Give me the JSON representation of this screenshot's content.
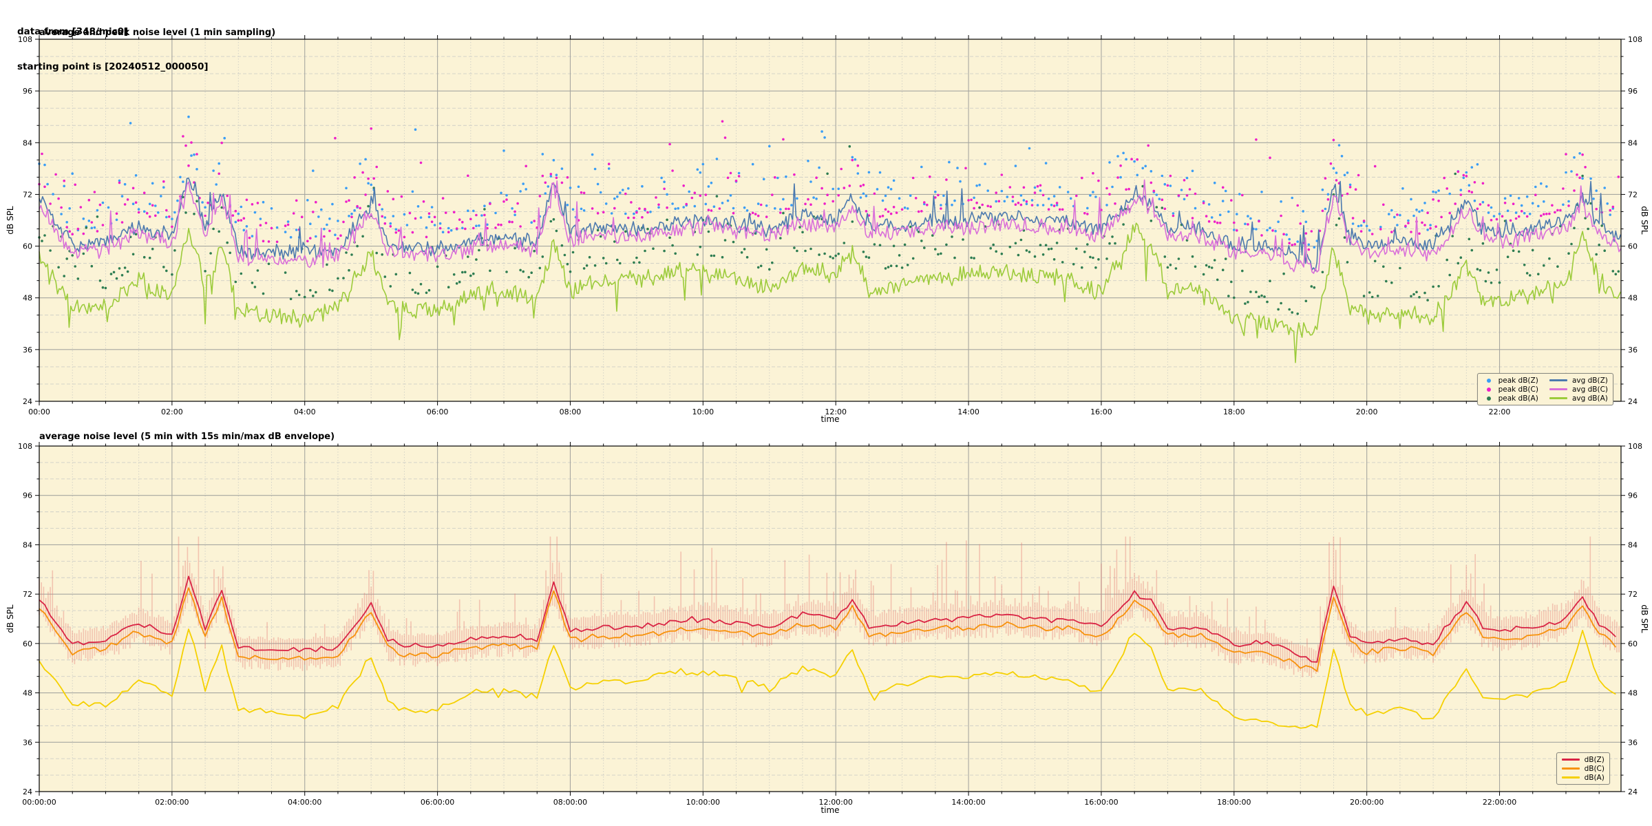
{
  "header": {
    "line1": "data from [348/mic0]",
    "line2": "starting point is [20240512_000050]"
  },
  "colors": {
    "figure_bg": "#ffffff",
    "plot_bg": "#FBF3D6",
    "grid_major": "#A6A6A0",
    "grid_minor": "#CFCFC6",
    "spine": "#000000",
    "envelope": "rgba(228,118,112,0.38)"
  },
  "chart_data": [
    {
      "type": "scatter+line",
      "title": "average and peak noise level (1 min sampling)",
      "xlabel": "time",
      "ylabel": "dB SPL",
      "ylim": [
        24,
        108
      ],
      "yticks": [
        24,
        36,
        48,
        60,
        72,
        84,
        96,
        108
      ],
      "y_minor_step": 4,
      "xlim_hours": [
        0,
        23.83
      ],
      "xtick_step_hours": 2,
      "x_minor_step_hours": 0.5,
      "xtick_labels": [
        "00:00",
        "02:00",
        "04:00",
        "06:00",
        "08:00",
        "10:00",
        "12:00",
        "14:00",
        "16:00",
        "18:00",
        "20:00",
        "22:00"
      ],
      "grid": true,
      "legend_position": "lower right",
      "x_anchors_hours": [
        0,
        0.5,
        1,
        1.5,
        2,
        2.25,
        2.5,
        2.75,
        3,
        3.5,
        4,
        4.5,
        5,
        5.25,
        5.5,
        6,
        6.5,
        7,
        7.5,
        7.75,
        8,
        8.5,
        9,
        9.5,
        10,
        10.5,
        11,
        11.5,
        12,
        12.25,
        12.5,
        13,
        13.5,
        14,
        14.5,
        15,
        15.5,
        16,
        16.5,
        16.75,
        17,
        17.5,
        18,
        18.5,
        19,
        19.25,
        19.5,
        19.75,
        20,
        20.5,
        21,
        21.5,
        21.75,
        22,
        22.5,
        23,
        23.25,
        23.5,
        23.83
      ],
      "series": [
        {
          "name": "avg dB(Z)",
          "kind": "line",
          "color": "#4C79AE",
          "width": 1.6,
          "jitter": 2.2,
          "spike_prob": 0.05,
          "spike_amp": 8,
          "step_min": 1.5,
          "values": [
            71,
            60,
            61,
            65,
            62,
            76,
            64,
            73,
            59,
            58.5,
            58.5,
            59,
            70,
            61,
            59.5,
            59.5,
            61,
            62,
            61,
            75,
            63,
            64,
            64,
            65,
            66,
            65,
            64,
            67,
            66,
            71,
            64,
            65,
            66,
            66,
            67,
            66,
            66,
            64,
            72,
            70,
            64,
            64,
            60,
            60,
            57,
            56,
            74,
            62,
            60,
            61,
            60,
            70,
            64,
            63,
            64,
            66,
            71,
            65,
            61
          ]
        },
        {
          "name": "avg dB(C)",
          "kind": "line",
          "color": "#D96FD9",
          "width": 1.6,
          "jitter": 2.3,
          "spike_prob": 0.05,
          "spike_amp": 8,
          "step_min": 1.5,
          "derive_from": "avg dB(Z)",
          "offset": -1.7
        },
        {
          "name": "avg dB(A)",
          "kind": "line",
          "color": "#9CCB3B",
          "width": 1.6,
          "jitter": 2.5,
          "spike_prob": 0.06,
          "spike_amp": -7,
          "step_min": 1.5,
          "values": [
            58,
            46,
            46,
            52,
            48,
            65,
            50,
            60,
            45,
            44,
            43,
            46,
            58,
            47,
            45,
            45,
            49,
            50,
            48,
            61,
            50,
            52,
            52,
            54,
            54,
            53,
            50,
            55,
            53,
            60,
            49,
            51,
            53,
            53,
            54,
            53,
            52,
            49,
            64,
            60,
            50,
            50,
            43,
            42,
            40,
            41,
            60,
            46,
            44,
            45,
            43,
            55,
            48,
            47,
            49,
            52,
            64,
            52,
            48
          ]
        },
        {
          "name": "peak dB(Z)",
          "kind": "scatter",
          "color": "#3A9DF5",
          "base": "avg dB(Z)",
          "offset": 3.5,
          "spread": 10,
          "step_min": 2.5,
          "keep": 0.72,
          "outlier_prob": 0.05,
          "radius": 1.8
        },
        {
          "name": "peak dB(C)",
          "kind": "scatter",
          "color": "#EE1FC8",
          "base": "avg dB(Z)",
          "offset": 2.5,
          "spread": 10,
          "step_min": 2.5,
          "keep": 0.72,
          "outlier_prob": 0.05,
          "radius": 1.8
        },
        {
          "name": "peak dB(A)",
          "kind": "scatter",
          "color": "#2E7D52",
          "base": "avg dB(A)",
          "offset": 4,
          "spread": 9,
          "step_min": 2.5,
          "keep": 0.65,
          "outlier_prob": 0.04,
          "radius": 1.8
        }
      ],
      "legend": {
        "columns": 2,
        "items": [
          {
            "label": "peak dB(Z)",
            "marker": "dot",
            "color": "#3A9DF5"
          },
          {
            "label": "avg dB(Z)",
            "marker": "line",
            "color": "#4C79AE"
          },
          {
            "label": "peak dB(C)",
            "marker": "dot",
            "color": "#EE1FC8"
          },
          {
            "label": "avg dB(C)",
            "marker": "line",
            "color": "#D96FD9"
          },
          {
            "label": "peak dB(A)",
            "marker": "dot",
            "color": "#2E7D52"
          },
          {
            "label": "avg dB(A)",
            "marker": "line",
            "color": "#9CCB3B"
          }
        ]
      }
    },
    {
      "type": "line+band",
      "title": "average noise level (5 min with 15s min/max dB envelope)",
      "xlabel": "time",
      "ylabel": "dB SPL",
      "ylim": [
        24,
        108
      ],
      "yticks": [
        24,
        36,
        48,
        60,
        72,
        84,
        96,
        108
      ],
      "y_minor_step": 4,
      "xlim_hours": [
        0,
        23.83
      ],
      "xtick_step_hours": 2,
      "x_minor_step_hours": 0.5,
      "xtick_labels": [
        "00:00:00",
        "02:00:00",
        "04:00:00",
        "06:00:00",
        "08:00:00",
        "10:00:00",
        "12:00:00",
        "14:00:00",
        "16:00:00",
        "18:00:00",
        "20:00:00",
        "22:00:00"
      ],
      "grid": true,
      "legend_position": "lower right",
      "x_anchors_hours": [
        0,
        0.5,
        1,
        1.5,
        2,
        2.25,
        2.5,
        2.75,
        3,
        3.5,
        4,
        4.5,
        5,
        5.25,
        5.5,
        6,
        6.5,
        7,
        7.5,
        7.75,
        8,
        8.5,
        9,
        9.5,
        10,
        10.5,
        11,
        11.5,
        12,
        12.25,
        12.5,
        13,
        13.5,
        14,
        14.5,
        15,
        15.5,
        16,
        16.5,
        16.75,
        17,
        17.5,
        18,
        18.5,
        19,
        19.25,
        19.5,
        19.75,
        20,
        20.5,
        21,
        21.5,
        21.75,
        22,
        22.5,
        23,
        23.25,
        23.5,
        23.83
      ],
      "series": [
        {
          "name": "envelope dB(Z) 15s min/max",
          "kind": "band",
          "base": "dB(Z)",
          "up_base": 2.2,
          "down_base": 2.8,
          "spike_prob": 0.2,
          "spike_max": 16,
          "step_min": 2,
          "color": "rgba(228,118,112,0.38)"
        },
        {
          "name": "dB(A)",
          "kind": "line",
          "color": "#F5D000",
          "width": 1.8,
          "jitter": 1.0,
          "spike_prob": 0.03,
          "spike_amp": -4,
          "step_min": 5,
          "values": [
            56,
            45,
            45,
            51,
            47,
            64,
            49,
            59,
            44,
            43,
            42,
            45,
            57,
            46,
            44,
            44,
            48,
            49,
            47,
            60,
            49,
            51,
            51,
            53,
            53,
            52,
            49,
            54,
            52,
            59,
            48,
            50,
            52,
            52,
            53,
            52,
            51,
            48,
            63,
            59,
            49,
            49,
            42,
            41,
            39,
            40,
            59,
            45,
            43,
            44,
            42,
            54,
            47,
            46,
            48,
            51,
            63,
            51,
            47
          ]
        },
        {
          "name": "dB(C)",
          "kind": "line",
          "color": "#F7920B",
          "width": 1.8,
          "jitter": 0.9,
          "spike_prob": 0.0,
          "spike_amp": 0,
          "step_min": 5,
          "derive_from": "dB(Z)",
          "offset": -2.2
        },
        {
          "name": "dB(Z)",
          "kind": "line",
          "color": "#D92344",
          "width": 1.8,
          "jitter": 0.9,
          "spike_prob": 0.0,
          "spike_amp": 0,
          "step_min": 5,
          "values": [
            71,
            60,
            61,
            65,
            62,
            76,
            64,
            73,
            59,
            58.5,
            58.5,
            59,
            70,
            61,
            59.5,
            59.5,
            61,
            62,
            61,
            75,
            63,
            64,
            64,
            65,
            66,
            65,
            64,
            67,
            66,
            71,
            64,
            65,
            66,
            66,
            67,
            66,
            66,
            64,
            72,
            70,
            64,
            64,
            60,
            60,
            57,
            56,
            74,
            62,
            60,
            61,
            60,
            70,
            64,
            63,
            64,
            66,
            71,
            65,
            61
          ]
        }
      ],
      "legend": {
        "columns": 1,
        "items": [
          {
            "label": "dB(Z)",
            "marker": "line",
            "color": "#D92344"
          },
          {
            "label": "dB(C)",
            "marker": "line",
            "color": "#F7920B"
          },
          {
            "label": "dB(A)",
            "marker": "line",
            "color": "#F5D000"
          }
        ]
      }
    }
  ]
}
